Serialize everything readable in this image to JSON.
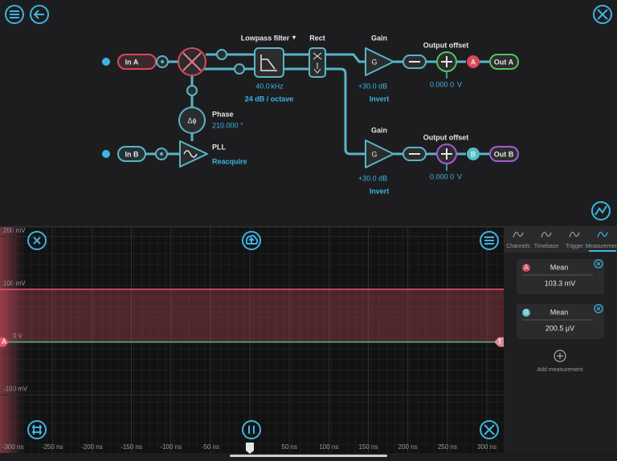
{
  "diagram": {
    "input_a": "In A",
    "input_b": "In B",
    "lowpass": {
      "title": "Lowpass filter",
      "corner": "40.0",
      "corner_unit": "kHz",
      "slope": "24 dB / octave"
    },
    "rect": {
      "title": "Rect"
    },
    "phase": {
      "title": "Phase",
      "symbol": "Δϕ",
      "value": "210.000 °"
    },
    "pll": {
      "title": "PLL",
      "action": "Reacquire"
    },
    "outputs": [
      {
        "gain_title": "Gain",
        "gain_symbol": "G",
        "gain": "+30.0 dB",
        "invert": "Invert",
        "offset_title": "Output offset",
        "offset": "0.000 0",
        "offset_unit": "V",
        "channel": "A",
        "label": "Out A"
      },
      {
        "gain_title": "Gain",
        "gain_symbol": "G",
        "gain": "+30.0 dB",
        "invert": "Invert",
        "offset_title": "Output offset",
        "offset": "0.000 0",
        "offset_unit": "V",
        "channel": "B",
        "label": "Out B"
      }
    ]
  },
  "plot": {
    "xlim": [
      -300,
      300
    ],
    "ylim": [
      -210,
      218
    ],
    "yticks": [
      {
        "value": 200,
        "label": "200 mV"
      },
      {
        "value": 100,
        "label": "100 mV"
      },
      {
        "value": 0,
        "label": "0 V"
      },
      {
        "value": -100,
        "label": "-100 mV"
      }
    ],
    "xticks": [
      {
        "value": -300,
        "label": "-300 ns"
      },
      {
        "value": -250,
        "label": "-250 ns"
      },
      {
        "value": -200,
        "label": "-200 ns"
      },
      {
        "value": -150,
        "label": "-150 ns"
      },
      {
        "value": -100,
        "label": "-100 ns"
      },
      {
        "value": -50,
        "label": "-50 ns"
      },
      0,
      {
        "value": 50,
        "label": "50 ns"
      },
      {
        "value": 100,
        "label": "100 ns"
      },
      {
        "value": 150,
        "label": "150 ns"
      },
      {
        "value": 200,
        "label": "200 ns"
      },
      {
        "value": 250,
        "label": "250 ns"
      },
      {
        "value": 300,
        "label": "300 ns"
      }
    ],
    "traces": [
      {
        "name": "A",
        "color": "#e5566b",
        "value": 100
      },
      {
        "name": "B",
        "color": "#4fbf8a",
        "value": 0
      }
    ],
    "trigger_label": "T"
  },
  "panel": {
    "tabs": [
      "Channels",
      "Timebase",
      "Trigger",
      "Measurement"
    ],
    "active_tab": 3,
    "measurements": [
      {
        "channel": "A",
        "type": "Mean",
        "value": "103.3 mV"
      },
      {
        "channel": "B",
        "type": "Mean",
        "value": "200.5 µV"
      }
    ],
    "add": "Add measurement"
  }
}
